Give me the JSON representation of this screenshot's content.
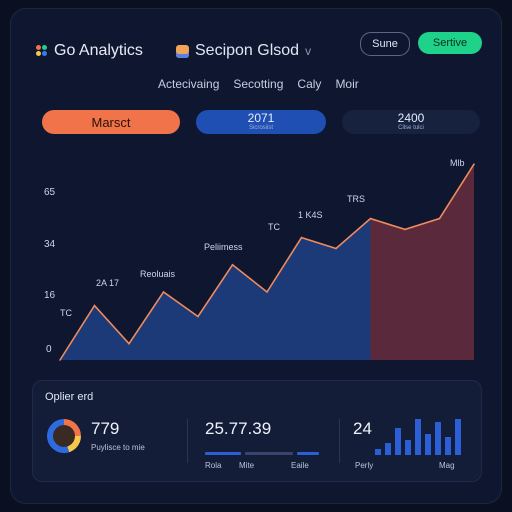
{
  "header": {
    "brand": "Go Analytics",
    "workspace": "Secipon Glsod",
    "workspace_chevron": "v",
    "button_outline": "Sune",
    "button_primary": "Sertive"
  },
  "tabs": [
    "Actecivaing",
    "Secotting",
    "Caly",
    "Moir"
  ],
  "kpis": [
    {
      "label": "Marsct",
      "value": "",
      "sub": ""
    },
    {
      "label": "",
      "value": "2071",
      "sub": "Sicrosiist"
    },
    {
      "label": "",
      "value": "2400",
      "sub": "Cilse tulci"
    }
  ],
  "chart_data": {
    "type": "area",
    "x": [
      0,
      1,
      2,
      3,
      4,
      5,
      6,
      7,
      8,
      9,
      10,
      11,
      12
    ],
    "values": [
      0,
      20,
      6,
      25,
      16,
      35,
      25,
      45,
      41,
      52,
      48,
      52,
      72
    ],
    "highlight_start_index": 9,
    "ylim": [
      0,
      75
    ],
    "yticks": [
      "0",
      "16",
      "34",
      "65"
    ],
    "annotations": [
      "Mlb",
      "TRS",
      "1 K4S",
      "TC",
      "Peliimess",
      "Reoluais",
      "2A 17",
      "TC"
    ],
    "colors": {
      "line": "#f08a5d",
      "fill_a": "#1d3a78",
      "fill_b": "#5a2a3c"
    }
  },
  "bottom": {
    "title": "Oplier erd",
    "stat1": {
      "value": "779",
      "label": "Puylisce to mie"
    },
    "stat2": {
      "value": "25.77.39",
      "labels": [
        "Rola",
        "Mite",
        "Eaile"
      ]
    },
    "stat3": {
      "value": "24",
      "labels": [
        "Perly",
        "Mag"
      ],
      "bars": [
        2,
        4,
        9,
        5,
        12,
        7,
        11,
        6,
        12
      ]
    }
  }
}
